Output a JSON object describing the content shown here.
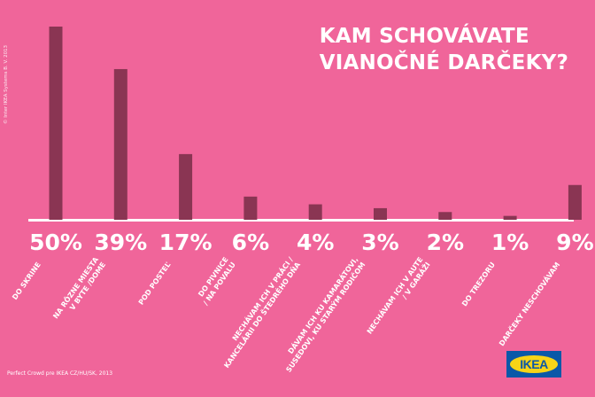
{
  "chart_data": {
    "type": "bar",
    "title_lines": [
      "KAM SCHOVÁVATE",
      "VIANOČNÉ DARČEKY?"
    ],
    "categories": [
      [
        "DO SKRINE"
      ],
      [
        "NA RÔZNE MIESTA",
        "V BYTE /DOME"
      ],
      [
        "POD POSTEĽ"
      ],
      [
        "DO PIVNICE",
        "/ NA POVALU"
      ],
      [
        "NECHÁVAM ICH V PRÁCI /",
        "KANCELÁRII DO ŠTEDRÉHO DŇA"
      ],
      [
        "DÁVAM ICH KU KAMARÁTOVI,",
        "SUSEDOVI, KU STARÝM RODIČOM"
      ],
      [
        "NECHÁVAM ICH V AUTE",
        "/ V GARÁŽI"
      ],
      [
        "DO TREZORU"
      ],
      [
        "DARČEKY NESCHOVÁVAM"
      ]
    ],
    "values": [
      50,
      39,
      17,
      6,
      4,
      3,
      2,
      1,
      9
    ],
    "value_labels": [
      "50%",
      "39%",
      "17%",
      "6%",
      "4%",
      "3%",
      "2%",
      "1%",
      "9%"
    ],
    "ylim": [
      0,
      50
    ],
    "grid": false,
    "legend": "none"
  },
  "copyright": "© Inter IKEA Systems B. V. 2013",
  "credit": "Perfect Crowd pre IKEA CZ/HU/SK, 2013",
  "logo_text": "IKEA",
  "colors": {
    "background": "#f0659a",
    "bar": "#8a3553",
    "text": "#ffffff",
    "logo_blue": "#0a58a8",
    "logo_yellow": "#f7d417"
  }
}
